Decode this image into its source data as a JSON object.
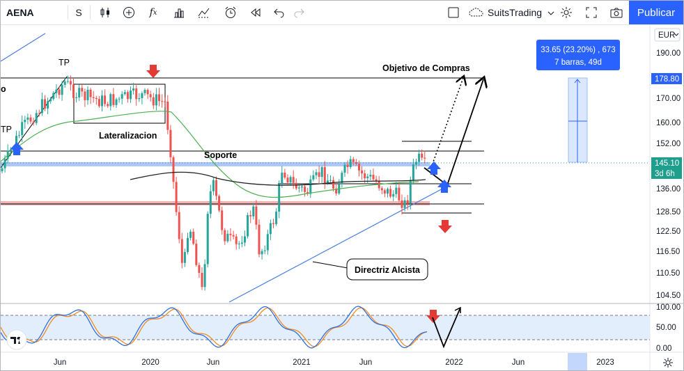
{
  "toolbar": {
    "symbol": "AENA",
    "interval": "S",
    "broker_name": "SuitsTrading",
    "publish_label": "Publicar",
    "icons": [
      "candles-icon",
      "plus-circle-icon",
      "indicators-icon",
      "templates-icon",
      "alert-icon",
      "replay-icon",
      "undo-icon",
      "redo-icon",
      "layout-icon",
      "cloud-icon",
      "settings-icon",
      "fullscreen-icon",
      "snapshot-icon"
    ]
  },
  "price_axis": {
    "currency": "EUR",
    "ticks": [
      "190.00",
      "178.80",
      "170.00",
      "160.00",
      "152.00",
      "145.10",
      "136.00",
      "128.50",
      "122.50",
      "116.50",
      "110.50",
      "104.50"
    ],
    "target_price": "178.80",
    "last_price": "145.10",
    "countdown": "3d 6h"
  },
  "osc_axis": {
    "ticks": [
      "100.00",
      "50.00",
      "0.00"
    ]
  },
  "time_axis": {
    "ticks": [
      "Jun",
      "2020",
      "Jun",
      "2021",
      "Jun",
      "2022",
      "Jun",
      "2023"
    ]
  },
  "measure_box": {
    "line1": "33.65 (23.20%) , 673",
    "line2": "7 barras, 49d"
  },
  "annotations": {
    "tp_top": "TP",
    "tp_left": "TP",
    "left_cut": "o",
    "lateral": "Lateralizacion",
    "soporte": "Soporte",
    "objetivo": "Objetivo de Compras",
    "directriz": "Directriz Alcista"
  },
  "colors": {
    "up": "#26a69a",
    "down": "#ef5350",
    "accent": "#2962ff",
    "ma_green": "#4caf50",
    "ma_black": "#222222",
    "trend": "#4a7fe0",
    "zone_blue": "#90b4f5",
    "zone_red": "#f4a6a6",
    "osc_blue": "#2f6fe0",
    "osc_orange": "#f08a24"
  },
  "chart_data": {
    "type": "candlestick",
    "symbol": "AENA",
    "interval": "S",
    "y_range": [
      101,
      195
    ],
    "last_price": 145.1,
    "target": 178.8,
    "levels": [
      178.8,
      148.8,
      145.1,
      137.5,
      130.6,
      127.3
    ],
    "oscillator": {
      "ylim": [
        0,
        100
      ],
      "bands": [
        80,
        20
      ]
    }
  }
}
